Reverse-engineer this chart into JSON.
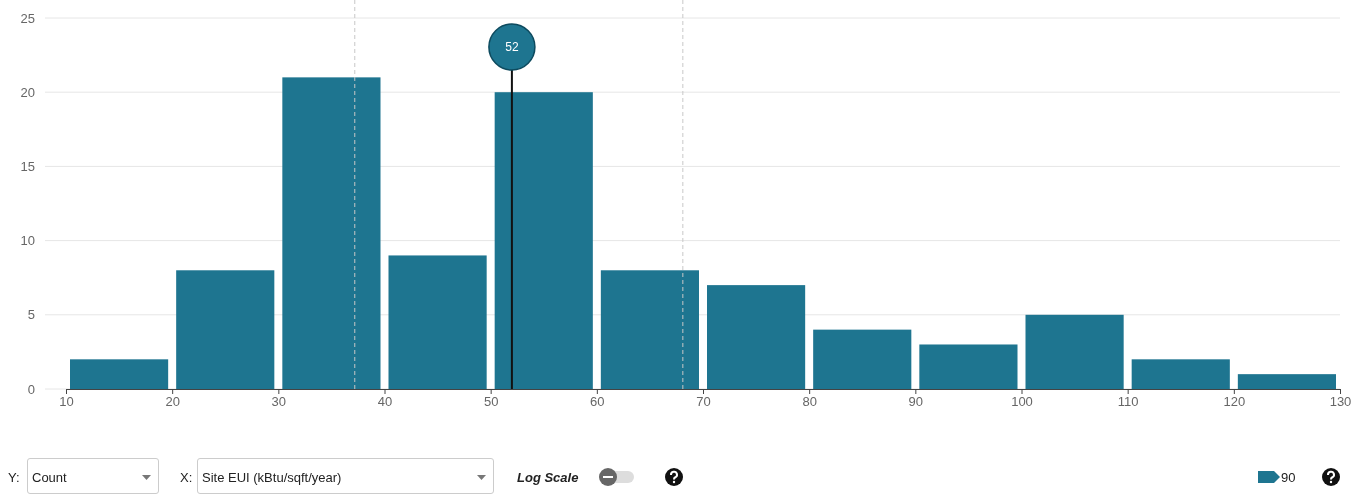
{
  "chart_data": {
    "type": "histogram",
    "bins": [
      10,
      20,
      30,
      40,
      50,
      60,
      70,
      80,
      90,
      100,
      110,
      120,
      130
    ],
    "values": [
      2,
      8,
      21,
      9,
      20,
      8,
      7,
      4,
      3,
      5,
      2,
      1
    ],
    "color": "#1e7590",
    "xlim": [
      10,
      130
    ],
    "xticks": [
      10,
      20,
      30,
      40,
      50,
      60,
      70,
      80,
      90,
      100,
      110,
      120,
      130
    ],
    "ylim": [
      0,
      25
    ],
    "yticks": [
      0,
      5,
      10,
      15,
      20,
      25
    ],
    "grid": "y",
    "ref_lines": [
      {
        "axis": "x",
        "value": 37.2,
        "line_style": "dashed",
        "color": "#c8c8c8"
      },
      {
        "axis": "x",
        "value": 68.1,
        "line_style": "dashed",
        "color": "#c8c8c8"
      },
      {
        "axis": "x",
        "value": 52,
        "label": "52",
        "line_style": "solid",
        "color": "#111111"
      }
    ],
    "annotations": [
      "Y:",
      "Count",
      "X:",
      "Site EUI (kBtu/sqft/year)",
      "Log Scale",
      "90"
    ]
  }
}
